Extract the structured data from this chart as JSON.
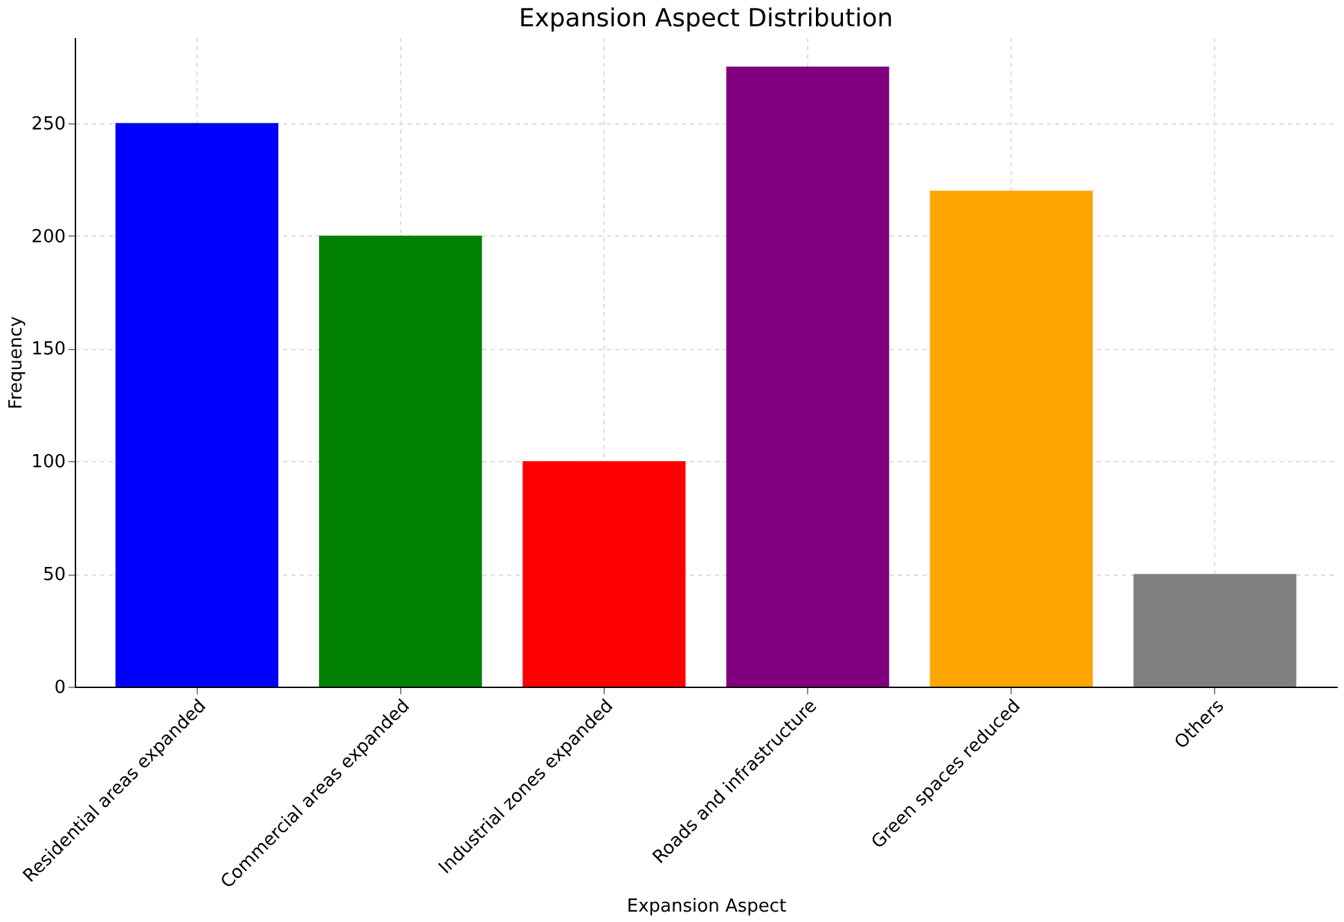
{
  "chart_data": {
    "type": "bar",
    "title": "Expansion Aspect Distribution",
    "xlabel": "Expansion Aspect",
    "ylabel": "Frequency",
    "categories": [
      "Residential areas expanded",
      "Commercial areas expanded",
      "Industrial zones expanded",
      "Roads and infrastructure",
      "Green spaces reduced",
      "Others"
    ],
    "values": [
      250,
      200,
      100,
      275,
      220,
      50
    ],
    "colors": [
      "#0000ff",
      "#008000",
      "#ff0000",
      "#800080",
      "#ffa500",
      "#808080"
    ],
    "ylim": [
      0,
      288
    ],
    "yticks": [
      0,
      50,
      100,
      150,
      200,
      250
    ],
    "grid": true
  }
}
